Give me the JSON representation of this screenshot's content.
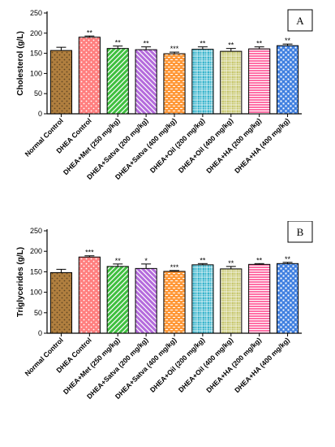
{
  "chart_data": [
    {
      "type": "bar",
      "panel": "A",
      "ylabel": "Cholesterol (g/L)",
      "ylim": [
        0,
        250
      ],
      "yticks": [
        0,
        50,
        100,
        150,
        200,
        250
      ],
      "categories": [
        "Normal Control",
        "DHEA Control",
        "DHEA+Met (250 mg/kg)",
        "DHEA+Satva (200 mg/kg)",
        "DHEA+Satva (400 mg/kg)",
        "DHEA+Oil (200 mg/kg)",
        "DHEA+Oil (400 mg/kg)",
        "DHEA+HA (200 mg/kg)",
        "DHEA+HA (400 mg/kg)"
      ],
      "values": [
        157,
        190,
        162,
        159,
        149,
        160,
        155,
        161,
        169
      ],
      "errors": [
        8,
        3,
        6,
        7,
        4,
        6,
        7,
        5,
        4
      ],
      "significance": [
        "",
        "**",
        "**",
        "**",
        "***",
        "**",
        "**",
        "**",
        "**"
      ],
      "colors": [
        "#b07f3f",
        "#ff7f7f",
        "#3fbf3f",
        "#b46bdc",
        "#ff9a3c",
        "#38b4cc",
        "#c8c870",
        "#ff6fa6",
        "#3f7fe0"
      ]
    },
    {
      "type": "bar",
      "panel": "B",
      "ylabel": "Triglycerides (g/L)",
      "ylim": [
        0,
        250
      ],
      "yticks": [
        0,
        50,
        100,
        150,
        200,
        250
      ],
      "categories": [
        "Normal Control",
        "DHEA Control",
        "DHEA+Met (250 mg/kg)",
        "DHEA+Satva (200 mg/kg)",
        "DHEA+Satva (400 mg/kg)",
        "DHEA+Oil (200 mg/kg)",
        "DHEA+Oil (400 mg/kg)",
        "DHEA+HA (200 mg/kg)",
        "DHEA+HA (400 mg/kg)"
      ],
      "values": [
        148,
        186,
        163,
        158,
        151,
        167,
        157,
        168,
        170
      ],
      "errors": [
        8,
        3,
        6,
        11,
        2,
        3,
        6,
        2,
        3
      ],
      "significance": [
        "",
        "***",
        "**",
        "*",
        "***",
        "**",
        "**",
        "**",
        "**"
      ],
      "colors": [
        "#b07f3f",
        "#ff7f7f",
        "#3fbf3f",
        "#b46bdc",
        "#ff9a3c",
        "#38b4cc",
        "#c8c870",
        "#ff6fa6",
        "#3f7fe0"
      ]
    }
  ]
}
